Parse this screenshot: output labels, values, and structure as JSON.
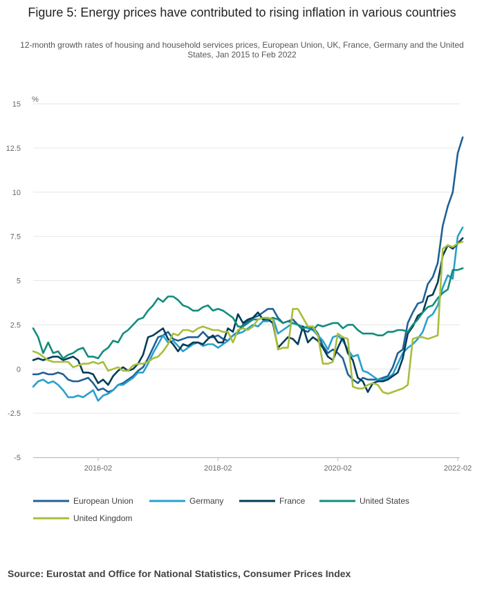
{
  "title": "Figure 5: Energy prices have contributed to rising inflation in various countries",
  "subtitle": "12-month growth rates of housing and household services prices, European Union, UK, France, Germany and the United States, Jan 2015 to Feb 2022",
  "source": "Source: Eurostat and Office for National Statistics, Consumer Prices Index",
  "chart_data": {
    "type": "line",
    "title": "Figure 5: Energy prices have contributed to rising inflation in various countries",
    "ylabel": "%",
    "xlabel": "",
    "ylim": [
      -5,
      15
    ],
    "yticks": [
      {
        "value": 15,
        "label": "15"
      },
      {
        "value": 12.5,
        "label": "12.5"
      },
      {
        "value": 10,
        "label": "10"
      },
      {
        "value": 7.5,
        "label": "7.5"
      },
      {
        "value": 5,
        "label": "5"
      },
      {
        "value": 2.5,
        "label": "2.5"
      },
      {
        "value": 0,
        "label": "0"
      },
      {
        "value": -2.5,
        "label": "-2.5"
      },
      {
        "value": -5,
        "label": "-5"
      }
    ],
    "xticks": [
      {
        "index": 13,
        "label": "2016-02"
      },
      {
        "index": 37,
        "label": "2018-02"
      },
      {
        "index": 61,
        "label": "2020-02"
      },
      {
        "index": 85,
        "label": "2022-02"
      }
    ],
    "x_start": "2015-01",
    "x_end": "2022-02",
    "n_points": 86,
    "grid": true,
    "legend_position": "bottom",
    "series": [
      {
        "name": "European Union",
        "color": "#206095",
        "values": [
          -0.3,
          -0.3,
          -0.2,
          -0.3,
          -0.3,
          -0.2,
          -0.3,
          -0.6,
          -0.7,
          -0.7,
          -0.6,
          -0.5,
          -0.8,
          -1.2,
          -1.1,
          -1.3,
          -1.2,
          -0.9,
          -0.8,
          -0.6,
          -0.4,
          -0.1,
          0.1,
          0.6,
          1.2,
          1.8,
          1.9,
          2.1,
          1.7,
          1.6,
          1.7,
          1.8,
          1.8,
          1.8,
          2.1,
          1.8,
          1.8,
          1.9,
          1.7,
          1.6,
          1.9,
          2.1,
          2.5,
          2.7,
          2.9,
          3.0,
          3.2,
          3.4,
          3.4,
          2.9,
          2.6,
          2.7,
          2.8,
          2.5,
          2.2,
          2.1,
          2.4,
          2.0,
          1.3,
          0.9,
          1.1,
          0.9,
          0.6,
          -0.3,
          -0.6,
          -0.8,
          -0.5,
          -0.6,
          -0.6,
          -0.6,
          -0.5,
          -0.4,
          0.1,
          0.9,
          1.1,
          2.6,
          3.2,
          3.7,
          3.8,
          4.8,
          5.2,
          6.0,
          8.1,
          9.2,
          10.0,
          12.2,
          13.1
        ]
      },
      {
        "name": "Germany",
        "color": "#27a0cc",
        "values": [
          -1.0,
          -0.7,
          -0.6,
          -0.8,
          -0.7,
          -0.9,
          -1.2,
          -1.6,
          -1.6,
          -1.5,
          -1.6,
          -1.4,
          -1.2,
          -1.8,
          -1.5,
          -1.4,
          -1.2,
          -0.9,
          -0.9,
          -0.7,
          -0.5,
          -0.2,
          -0.2,
          0.3,
          0.9,
          1.4,
          1.9,
          1.5,
          1.6,
          1.3,
          1.0,
          1.2,
          1.4,
          1.5,
          1.3,
          1.4,
          1.4,
          1.2,
          1.4,
          1.6,
          1.9,
          2.0,
          2.1,
          2.3,
          2.5,
          2.4,
          2.7,
          2.7,
          2.9,
          2.0,
          2.2,
          2.4,
          2.6,
          2.5,
          2.4,
          2.3,
          2.2,
          1.9,
          1.6,
          1.1,
          1.8,
          1.9,
          1.6,
          1.1,
          0.7,
          0.8,
          -0.1,
          -0.2,
          -0.4,
          -0.6,
          -0.6,
          -0.5,
          -0.3,
          0.3,
          0.9,
          1.2,
          1.4,
          1.7,
          2.1,
          2.9,
          3.1,
          3.6,
          4.6,
          5.3,
          5.1,
          7.5,
          8.0
        ]
      },
      {
        "name": "France",
        "color": "#003c57",
        "values": [
          0.5,
          0.6,
          0.5,
          0.6,
          0.7,
          0.7,
          0.5,
          0.6,
          0.7,
          0.5,
          -0.2,
          -0.2,
          -0.3,
          -0.8,
          -0.6,
          -0.9,
          -0.4,
          -0.1,
          0.1,
          -0.1,
          0.0,
          0.3,
          0.8,
          1.8,
          1.9,
          2.1,
          2.3,
          1.7,
          1.4,
          1.0,
          1.4,
          1.3,
          1.5,
          1.5,
          1.4,
          1.7,
          1.9,
          1.5,
          1.5,
          2.3,
          2.1,
          3.1,
          2.6,
          2.8,
          2.9,
          3.2,
          2.8,
          2.8,
          2.6,
          1.2,
          1.5,
          1.8,
          1.7,
          1.4,
          2.4,
          1.5,
          1.8,
          1.6,
          1.2,
          0.7,
          0.5,
          1.2,
          1.8,
          0.9,
          0.5,
          -0.5,
          -0.7,
          -1.3,
          -0.8,
          -0.7,
          -0.7,
          -0.6,
          -0.4,
          -0.2,
          0.6,
          2.0,
          2.4,
          3.0,
          3.2,
          4.1,
          4.2,
          4.9,
          6.4,
          7.0,
          6.8,
          7.1,
          7.4
        ]
      },
      {
        "name": "United States",
        "color": "#118c7b",
        "values": [
          2.3,
          1.8,
          0.9,
          1.5,
          0.9,
          1.0,
          0.6,
          0.8,
          0.9,
          1.1,
          1.2,
          0.7,
          0.7,
          0.6,
          1.0,
          1.2,
          1.6,
          1.5,
          2.0,
          2.2,
          2.5,
          2.8,
          2.9,
          3.3,
          3.6,
          4.0,
          3.8,
          4.1,
          4.1,
          3.9,
          3.6,
          3.5,
          3.3,
          3.3,
          3.5,
          3.6,
          3.3,
          3.4,
          3.3,
          3.1,
          2.9,
          2.4,
          2.4,
          2.6,
          2.8,
          2.8,
          2.9,
          2.8,
          2.9,
          2.8,
          2.6,
          2.7,
          2.6,
          2.5,
          2.3,
          2.4,
          2.2,
          2.5,
          2.4,
          2.5,
          2.6,
          2.6,
          2.3,
          2.5,
          2.5,
          2.2,
          2.0,
          2.0,
          2.0,
          1.9,
          1.9,
          2.1,
          2.1,
          2.2,
          2.2,
          2.1,
          2.5,
          2.8,
          3.2,
          3.5,
          3.6,
          4.0,
          4.3,
          4.5,
          5.6,
          5.6,
          5.7
        ]
      },
      {
        "name": "United Kingdom",
        "color": "#a8bd3a",
        "values": [
          1.0,
          0.9,
          0.7,
          0.5,
          0.4,
          0.4,
          0.4,
          0.4,
          0.1,
          0.2,
          0.3,
          0.3,
          0.4,
          0.3,
          0.4,
          -0.1,
          0.0,
          0.1,
          -0.1,
          -0.1,
          0.2,
          0.3,
          0.3,
          0.4,
          0.6,
          0.7,
          1.0,
          1.4,
          2.0,
          1.9,
          2.2,
          2.2,
          2.1,
          2.3,
          2.4,
          2.3,
          2.2,
          2.2,
          2.1,
          2.1,
          1.5,
          2.2,
          2.3,
          2.2,
          2.4,
          2.8,
          2.9,
          2.9,
          2.8,
          1.1,
          1.2,
          1.2,
          3.4,
          3.4,
          2.9,
          2.4,
          2.4,
          1.9,
          0.3,
          0.3,
          0.4,
          2.0,
          1.8,
          1.7,
          -1.0,
          -1.1,
          -1.1,
          -0.9,
          -0.8,
          -0.9,
          -1.3,
          -1.4,
          -1.3,
          -1.2,
          -1.1,
          -0.9,
          1.7,
          1.8,
          1.8,
          1.7,
          1.8,
          1.9,
          6.8,
          7.0,
          6.9,
          7.1,
          7.2
        ]
      }
    ]
  }
}
